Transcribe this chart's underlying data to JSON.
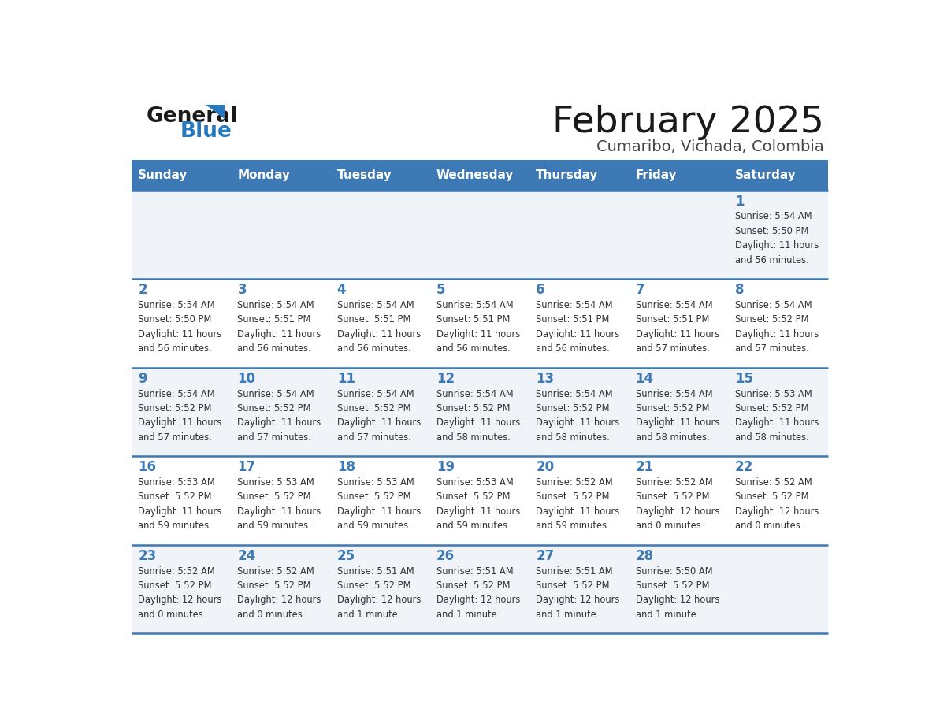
{
  "title": "February 2025",
  "subtitle": "Cumaribo, Vichada, Colombia",
  "days_of_week": [
    "Sunday",
    "Monday",
    "Tuesday",
    "Wednesday",
    "Thursday",
    "Friday",
    "Saturday"
  ],
  "header_bg": "#3d7ab5",
  "header_text": "#ffffff",
  "row_bg_odd": "#f0f4f8",
  "row_bg_even": "#ffffff",
  "divider_color": "#3d7ab5",
  "day_num_color": "#3d7ab5",
  "text_color": "#333333",
  "weeks": [
    [
      {
        "day": null,
        "sunrise": null,
        "sunset": null,
        "daylight_line1": null,
        "daylight_line2": null
      },
      {
        "day": null,
        "sunrise": null,
        "sunset": null,
        "daylight_line1": null,
        "daylight_line2": null
      },
      {
        "day": null,
        "sunrise": null,
        "sunset": null,
        "daylight_line1": null,
        "daylight_line2": null
      },
      {
        "day": null,
        "sunrise": null,
        "sunset": null,
        "daylight_line1": null,
        "daylight_line2": null
      },
      {
        "day": null,
        "sunrise": null,
        "sunset": null,
        "daylight_line1": null,
        "daylight_line2": null
      },
      {
        "day": null,
        "sunrise": null,
        "sunset": null,
        "daylight_line1": null,
        "daylight_line2": null
      },
      {
        "day": 1,
        "sunrise": "5:54 AM",
        "sunset": "5:50 PM",
        "daylight_line1": "Daylight: 11 hours",
        "daylight_line2": "and 56 minutes."
      }
    ],
    [
      {
        "day": 2,
        "sunrise": "5:54 AM",
        "sunset": "5:50 PM",
        "daylight_line1": "Daylight: 11 hours",
        "daylight_line2": "and 56 minutes."
      },
      {
        "day": 3,
        "sunrise": "5:54 AM",
        "sunset": "5:51 PM",
        "daylight_line1": "Daylight: 11 hours",
        "daylight_line2": "and 56 minutes."
      },
      {
        "day": 4,
        "sunrise": "5:54 AM",
        "sunset": "5:51 PM",
        "daylight_line1": "Daylight: 11 hours",
        "daylight_line2": "and 56 minutes."
      },
      {
        "day": 5,
        "sunrise": "5:54 AM",
        "sunset": "5:51 PM",
        "daylight_line1": "Daylight: 11 hours",
        "daylight_line2": "and 56 minutes."
      },
      {
        "day": 6,
        "sunrise": "5:54 AM",
        "sunset": "5:51 PM",
        "daylight_line1": "Daylight: 11 hours",
        "daylight_line2": "and 56 minutes."
      },
      {
        "day": 7,
        "sunrise": "5:54 AM",
        "sunset": "5:51 PM",
        "daylight_line1": "Daylight: 11 hours",
        "daylight_line2": "and 57 minutes."
      },
      {
        "day": 8,
        "sunrise": "5:54 AM",
        "sunset": "5:52 PM",
        "daylight_line1": "Daylight: 11 hours",
        "daylight_line2": "and 57 minutes."
      }
    ],
    [
      {
        "day": 9,
        "sunrise": "5:54 AM",
        "sunset": "5:52 PM",
        "daylight_line1": "Daylight: 11 hours",
        "daylight_line2": "and 57 minutes."
      },
      {
        "day": 10,
        "sunrise": "5:54 AM",
        "sunset": "5:52 PM",
        "daylight_line1": "Daylight: 11 hours",
        "daylight_line2": "and 57 minutes."
      },
      {
        "day": 11,
        "sunrise": "5:54 AM",
        "sunset": "5:52 PM",
        "daylight_line1": "Daylight: 11 hours",
        "daylight_line2": "and 57 minutes."
      },
      {
        "day": 12,
        "sunrise": "5:54 AM",
        "sunset": "5:52 PM",
        "daylight_line1": "Daylight: 11 hours",
        "daylight_line2": "and 58 minutes."
      },
      {
        "day": 13,
        "sunrise": "5:54 AM",
        "sunset": "5:52 PM",
        "daylight_line1": "Daylight: 11 hours",
        "daylight_line2": "and 58 minutes."
      },
      {
        "day": 14,
        "sunrise": "5:54 AM",
        "sunset": "5:52 PM",
        "daylight_line1": "Daylight: 11 hours",
        "daylight_line2": "and 58 minutes."
      },
      {
        "day": 15,
        "sunrise": "5:53 AM",
        "sunset": "5:52 PM",
        "daylight_line1": "Daylight: 11 hours",
        "daylight_line2": "and 58 minutes."
      }
    ],
    [
      {
        "day": 16,
        "sunrise": "5:53 AM",
        "sunset": "5:52 PM",
        "daylight_line1": "Daylight: 11 hours",
        "daylight_line2": "and 59 minutes."
      },
      {
        "day": 17,
        "sunrise": "5:53 AM",
        "sunset": "5:52 PM",
        "daylight_line1": "Daylight: 11 hours",
        "daylight_line2": "and 59 minutes."
      },
      {
        "day": 18,
        "sunrise": "5:53 AM",
        "sunset": "5:52 PM",
        "daylight_line1": "Daylight: 11 hours",
        "daylight_line2": "and 59 minutes."
      },
      {
        "day": 19,
        "sunrise": "5:53 AM",
        "sunset": "5:52 PM",
        "daylight_line1": "Daylight: 11 hours",
        "daylight_line2": "and 59 minutes."
      },
      {
        "day": 20,
        "sunrise": "5:52 AM",
        "sunset": "5:52 PM",
        "daylight_line1": "Daylight: 11 hours",
        "daylight_line2": "and 59 minutes."
      },
      {
        "day": 21,
        "sunrise": "5:52 AM",
        "sunset": "5:52 PM",
        "daylight_line1": "Daylight: 12 hours",
        "daylight_line2": "and 0 minutes."
      },
      {
        "day": 22,
        "sunrise": "5:52 AM",
        "sunset": "5:52 PM",
        "daylight_line1": "Daylight: 12 hours",
        "daylight_line2": "and 0 minutes."
      }
    ],
    [
      {
        "day": 23,
        "sunrise": "5:52 AM",
        "sunset": "5:52 PM",
        "daylight_line1": "Daylight: 12 hours",
        "daylight_line2": "and 0 minutes."
      },
      {
        "day": 24,
        "sunrise": "5:52 AM",
        "sunset": "5:52 PM",
        "daylight_line1": "Daylight: 12 hours",
        "daylight_line2": "and 0 minutes."
      },
      {
        "day": 25,
        "sunrise": "5:51 AM",
        "sunset": "5:52 PM",
        "daylight_line1": "Daylight: 12 hours",
        "daylight_line2": "and 1 minute."
      },
      {
        "day": 26,
        "sunrise": "5:51 AM",
        "sunset": "5:52 PM",
        "daylight_line1": "Daylight: 12 hours",
        "daylight_line2": "and 1 minute."
      },
      {
        "day": 27,
        "sunrise": "5:51 AM",
        "sunset": "5:52 PM",
        "daylight_line1": "Daylight: 12 hours",
        "daylight_line2": "and 1 minute."
      },
      {
        "day": 28,
        "sunrise": "5:50 AM",
        "sunset": "5:52 PM",
        "daylight_line1": "Daylight: 12 hours",
        "daylight_line2": "and 1 minute."
      },
      {
        "day": null,
        "sunrise": null,
        "sunset": null,
        "daylight_line1": null,
        "daylight_line2": null
      }
    ]
  ]
}
